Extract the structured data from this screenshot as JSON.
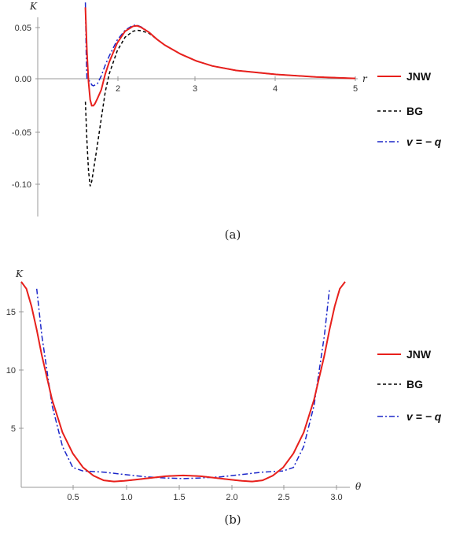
{
  "chart_data": [
    {
      "type": "line",
      "panel_label": "(a)",
      "ylabel": "K",
      "xlabel": "r",
      "xlim": [
        1,
        5
      ],
      "ylim": [
        -0.13,
        0.065
      ],
      "xticks": [
        "2",
        "3",
        "4",
        "5"
      ],
      "yticks": [
        "0.05",
        "0.00",
        "-0.05",
        "-0.10"
      ],
      "grid": false,
      "legend_position": "right",
      "series": [
        {
          "name": "JNW",
          "color": "#e8201c",
          "style": "solid",
          "x": [
            1.6,
            1.62,
            1.64,
            1.66,
            1.68,
            1.7,
            1.72,
            1.75,
            1.8,
            1.85,
            1.9,
            2.0,
            2.1,
            2.2,
            2.25,
            2.3,
            2.4,
            2.5,
            2.6,
            2.8,
            3.0,
            3.2,
            3.5,
            4.0,
            4.5,
            5.0
          ],
          "y": [
            0.075,
            0.03,
            0.0,
            -0.018,
            -0.024,
            -0.024,
            -0.022,
            -0.017,
            -0.008,
            0.008,
            0.02,
            0.039,
            0.051,
            0.056,
            0.0565,
            0.055,
            0.05,
            0.043,
            0.037,
            0.028,
            0.021,
            0.016,
            0.0115,
            0.0075,
            0.005,
            0.0035
          ]
        },
        {
          "name": "BG",
          "color": "#000000",
          "style": "dashed",
          "x": [
            1.6,
            1.62,
            1.64,
            1.66,
            1.68,
            1.7,
            1.75,
            1.8,
            1.85,
            1.9,
            2.0,
            2.1,
            2.2,
            2.25,
            2.3,
            2.4,
            2.5,
            2.6,
            2.8,
            3.0,
            3.2,
            3.5,
            4.0,
            4.5,
            5.0
          ],
          "y": [
            -0.02,
            -0.06,
            -0.09,
            -0.105,
            -0.1,
            -0.09,
            -0.064,
            -0.037,
            -0.01,
            0.008,
            0.031,
            0.045,
            0.051,
            0.052,
            0.0515,
            0.049,
            0.043,
            0.037,
            0.028,
            0.021,
            0.016,
            0.0115,
            0.0075,
            0.005,
            0.0035
          ]
        },
        {
          "name": "v = − q",
          "color": "#1b26c9",
          "style": "dashdot",
          "x": [
            1.6,
            1.61,
            1.62,
            1.64,
            1.66,
            1.68,
            1.7,
            1.75,
            1.8,
            1.85,
            1.9,
            2.0,
            2.1,
            2.2,
            2.25,
            2.3,
            2.4,
            2.5,
            2.6,
            2.8,
            3.0,
            3.2,
            3.5,
            4.0,
            4.5,
            5.0
          ],
          "y": [
            0.08,
            0.03,
            0.003,
            0.002,
            0.0,
            -0.003,
            -0.004,
            -0.002,
            0.006,
            0.017,
            0.026,
            0.042,
            0.052,
            0.057,
            0.057,
            0.0555,
            0.05,
            0.043,
            0.037,
            0.028,
            0.021,
            0.016,
            0.0115,
            0.0075,
            0.005,
            0.0035
          ]
        }
      ]
    },
    {
      "type": "line",
      "panel_label": "(b)",
      "ylabel": "K",
      "xlabel": "θ",
      "xlim": [
        0,
        3.1416
      ],
      "ylim": [
        0,
        18
      ],
      "xticks": [
        "0.5",
        "1.0",
        "1.5",
        "2.0",
        "2.5",
        "3.0"
      ],
      "yticks": [
        "15",
        "10",
        "5"
      ],
      "grid": false,
      "legend_position": "right",
      "series": [
        {
          "name": "JNW",
          "color": "#e8201c",
          "style": "solid",
          "x": [
            0.0,
            0.05,
            0.1,
            0.15,
            0.2,
            0.3,
            0.4,
            0.5,
            0.6,
            0.7,
            0.8,
            0.9,
            1.0,
            1.1,
            1.2,
            1.3,
            1.4,
            1.5,
            1.5708,
            1.64,
            1.74,
            1.84,
            1.94,
            2.04,
            2.14,
            2.24,
            2.34,
            2.44,
            2.54,
            2.64,
            2.74,
            2.84,
            2.94,
            2.99,
            3.04,
            3.09,
            3.1416
          ],
          "y": [
            17.6,
            17.0,
            15.5,
            13.5,
            11.3,
            7.5,
            4.7,
            2.9,
            1.7,
            1.0,
            0.6,
            0.5,
            0.55,
            0.65,
            0.75,
            0.85,
            0.95,
            1.0,
            1.02,
            1.0,
            0.95,
            0.85,
            0.75,
            0.65,
            0.55,
            0.5,
            0.6,
            1.0,
            1.7,
            2.9,
            4.7,
            7.5,
            11.3,
            13.5,
            15.5,
            17.0,
            17.6
          ]
        },
        {
          "name": "BG",
          "color": "#000000",
          "style": "dashed",
          "x": [
            0.0,
            0.05,
            0.1,
            0.15,
            0.2,
            0.3,
            0.4,
            0.5,
            0.6,
            0.7,
            0.8,
            0.9,
            1.0,
            1.1,
            1.2,
            1.3,
            1.4,
            1.5,
            1.5708,
            1.64,
            1.74,
            1.84,
            1.94,
            2.04,
            2.14,
            2.24,
            2.34,
            2.44,
            2.54,
            2.64,
            2.74,
            2.84,
            2.94,
            2.99,
            3.04,
            3.09,
            3.1416
          ],
          "y": [
            17.6,
            17.0,
            15.5,
            13.5,
            11.3,
            7.5,
            4.7,
            2.9,
            1.7,
            1.0,
            0.6,
            0.5,
            0.55,
            0.65,
            0.75,
            0.85,
            0.95,
            1.0,
            1.02,
            1.0,
            0.95,
            0.85,
            0.75,
            0.65,
            0.55,
            0.5,
            0.6,
            1.0,
            1.7,
            2.9,
            4.7,
            7.5,
            11.3,
            13.5,
            15.5,
            17.0,
            17.6
          ]
        },
        {
          "name": "v = − q",
          "color": "#1b26c9",
          "style": "dashdot",
          "x": [
            0.15,
            0.2,
            0.3,
            0.4,
            0.5,
            0.6,
            0.8,
            1.0,
            1.2,
            1.4,
            1.5708,
            1.74,
            1.94,
            2.14,
            2.34,
            2.54,
            2.64,
            2.74,
            2.84,
            2.94,
            2.99
          ],
          "y": [
            17.0,
            13.0,
            7.0,
            3.5,
            1.7,
            1.4,
            1.3,
            1.1,
            0.9,
            0.8,
            0.75,
            0.8,
            0.9,
            1.1,
            1.3,
            1.4,
            1.7,
            3.5,
            7.0,
            13.0,
            17.0
          ]
        }
      ]
    }
  ]
}
